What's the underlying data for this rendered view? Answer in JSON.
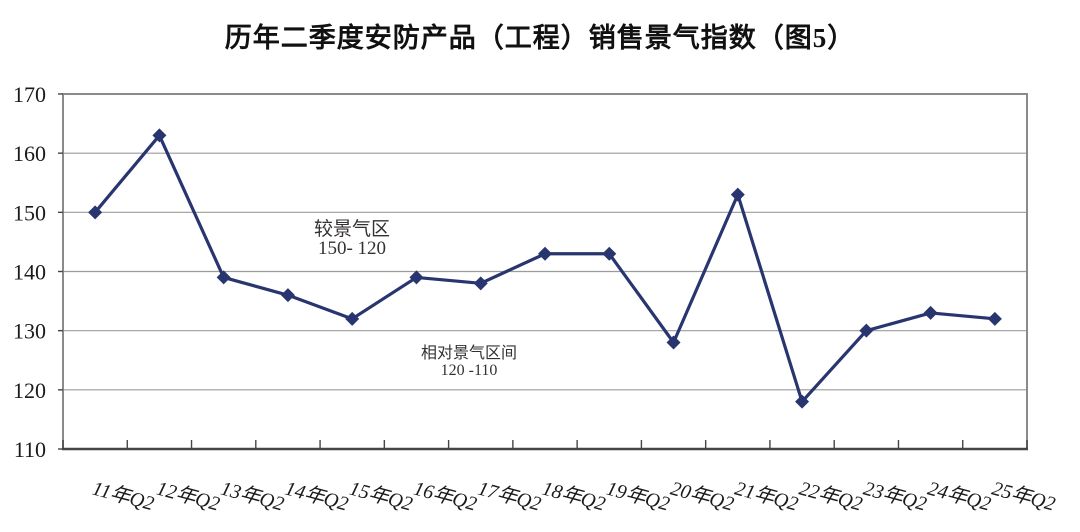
{
  "chart_data": {
    "type": "line",
    "title": "历年二季度安防产品（工程）销售景气指数（图5）",
    "categories": [
      "11年Q2",
      "12年Q2",
      "13年Q2",
      "14年Q2",
      "15年Q2",
      "16年Q2",
      "17年Q2",
      "18年Q2",
      "19年Q2",
      "20年Q2",
      "21年Q2",
      "22年Q2",
      "23年Q2",
      "24年Q2",
      "25年Q2"
    ],
    "values": [
      150,
      163,
      139,
      136,
      132,
      139,
      138,
      143,
      143,
      128,
      153,
      118,
      130,
      133,
      132
    ],
    "xlabel": "",
    "ylabel": "",
    "ylim": [
      110,
      170
    ],
    "ytick_step": 10,
    "ytick_labels": [
      "170",
      "160",
      "150",
      "140",
      "130",
      "120",
      "110"
    ],
    "grid": true,
    "legend": "none",
    "marker": "diamond",
    "annotations": [
      {
        "text": "较景气区",
        "subtext": "150- 120"
      },
      {
        "text": "相对景气区间",
        "subtext": "120 -110"
      }
    ],
    "colors": {
      "line": "#28356f",
      "grid": "#9b9b9b",
      "plot_border": "#8a8a8a",
      "axis": "#454545",
      "text": "#1a1a1a"
    }
  }
}
